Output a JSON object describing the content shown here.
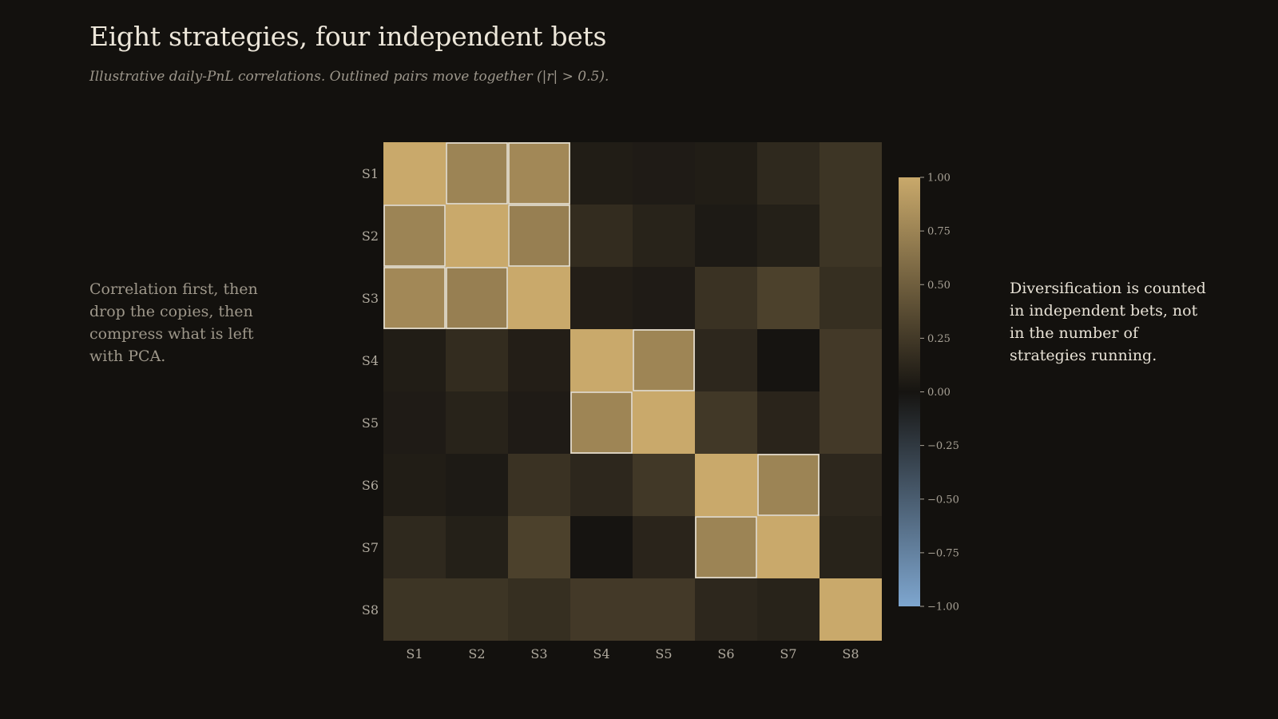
{
  "title": "Eight strategies, four independent bets",
  "subtitle": "Illustrative daily-PnL correlations. Outlined pairs move together (|r| > 0.5).",
  "left_note": "Correlation first, then drop the copies, then compress what is left with PCA.",
  "right_note": "Diversification is counted in independent bets, not in the number of strategies running.",
  "chart_data": {
    "type": "heatmap",
    "categories": [
      "S1",
      "S2",
      "S3",
      "S4",
      "S5",
      "S6",
      "S7",
      "S8"
    ],
    "threshold": 0.5,
    "values": [
      [
        1.0,
        0.75,
        0.78,
        0.06,
        0.05,
        0.06,
        0.14,
        0.22
      ],
      [
        0.75,
        1.0,
        0.72,
        0.16,
        0.1,
        0.04,
        0.08,
        0.22
      ],
      [
        0.78,
        0.72,
        1.0,
        0.07,
        0.05,
        0.2,
        0.3,
        0.18
      ],
      [
        0.06,
        0.16,
        0.07,
        1.0,
        0.76,
        0.13,
        0.0,
        0.25
      ],
      [
        0.05,
        0.1,
        0.05,
        0.76,
        1.0,
        0.24,
        0.11,
        0.25
      ],
      [
        0.06,
        0.04,
        0.2,
        0.13,
        0.24,
        1.0,
        0.75,
        0.13
      ],
      [
        0.14,
        0.08,
        0.3,
        0.0,
        0.11,
        0.75,
        1.0,
        0.1
      ],
      [
        0.22,
        0.22,
        0.18,
        0.25,
        0.25,
        0.13,
        0.1,
        1.0
      ]
    ],
    "color_range": [
      -1,
      1
    ],
    "colors": {
      "positive": "#c9a96b",
      "neutral": "#161411",
      "negative": "#7ea6cf",
      "outline": "#e6e1d6"
    },
    "colorbar_ticks": [
      "1.00",
      "0.75",
      "0.50",
      "0.25",
      "0.00",
      "−0.25",
      "−0.50",
      "−0.75",
      "−1.00"
    ],
    "colorbar_values": [
      1.0,
      0.75,
      0.5,
      0.25,
      0.0,
      -0.25,
      -0.5,
      -0.75,
      -1.0
    ]
  }
}
